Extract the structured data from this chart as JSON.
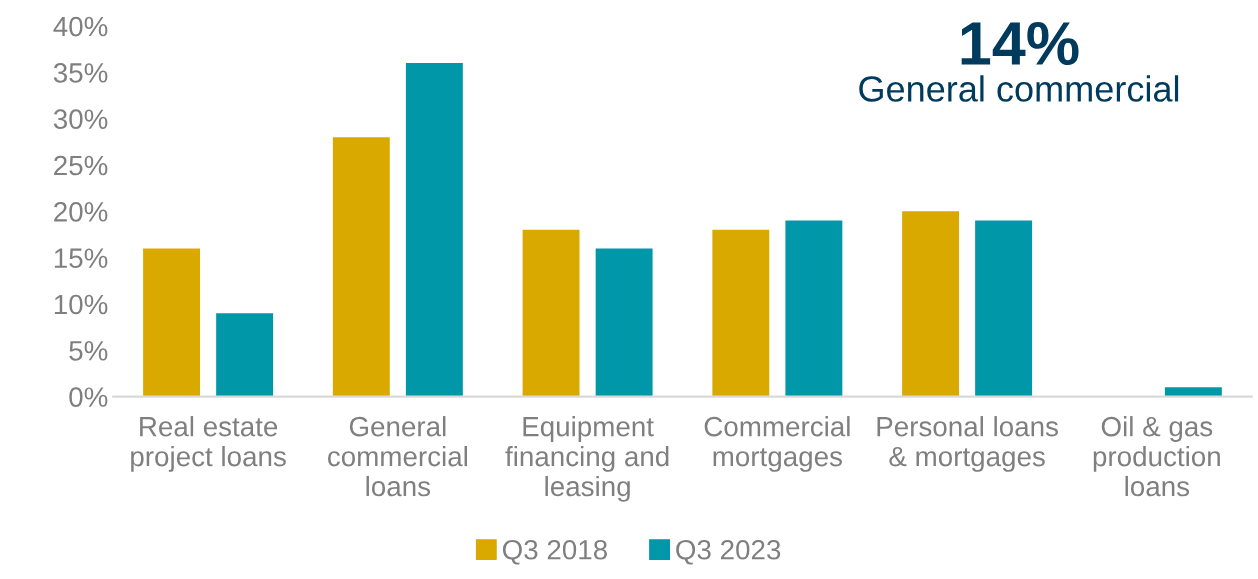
{
  "chart_data": {
    "type": "bar",
    "categories": [
      "Real estate project loans",
      "General commercial loans",
      "Equipment financing and leasing",
      "Commercial mortgages",
      "Personal loans & mortgages",
      "Oil & gas production loans"
    ],
    "series": [
      {
        "name": "Q3 2018",
        "color": "#d9a900",
        "values": [
          16,
          28,
          18,
          18,
          20,
          0
        ]
      },
      {
        "name": "Q3 2023",
        "color": "#0097a9",
        "values": [
          9,
          36,
          16,
          19,
          19,
          1
        ]
      }
    ],
    "ylim": [
      0,
      40
    ],
    "yticks": [
      {
        "value": 0,
        "label": "0%"
      },
      {
        "value": 5,
        "label": "5%"
      },
      {
        "value": 10,
        "label": "10%"
      },
      {
        "value": 15,
        "label": "15%"
      },
      {
        "value": 20,
        "label": "20%"
      },
      {
        "value": 25,
        "label": "25%"
      },
      {
        "value": 30,
        "label": "30%"
      },
      {
        "value": 35,
        "label": "35%"
      },
      {
        "value": 40,
        "label": "40%"
      }
    ],
    "annotations": [
      "14%",
      "General commercial"
    ],
    "grid": false,
    "legend": "bottom"
  }
}
